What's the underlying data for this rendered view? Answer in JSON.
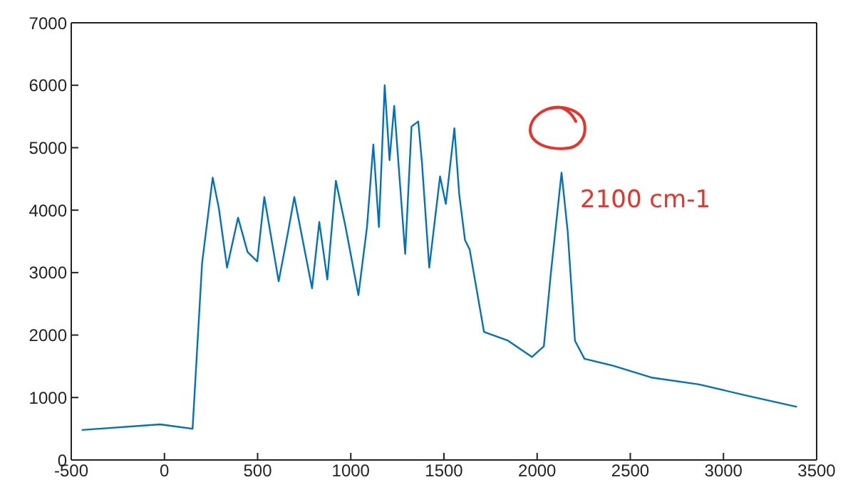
{
  "chart_data": {
    "type": "line",
    "x": [
      -444,
      -23,
      151,
      202,
      259,
      292,
      336,
      395,
      446,
      498,
      536,
      613,
      664,
      697,
      792,
      831,
      874,
      920,
      972,
      1041,
      1087,
      1121,
      1151,
      1182,
      1208,
      1233,
      1292,
      1326,
      1362,
      1382,
      1421,
      1479,
      1510,
      1556,
      1582,
      1613,
      1638,
      1715,
      1844,
      1972,
      2036,
      2074,
      2131,
      2164,
      2203,
      2254,
      2408,
      2613,
      2869,
      3125,
      3394
    ],
    "series": [
      {
        "color": "#0072bd",
        "values": [
          480,
          570,
          500,
          3150,
          4520,
          4030,
          3080,
          3880,
          3330,
          3180,
          4210,
          2860,
          3660,
          4210,
          2750,
          3810,
          2890,
          4470,
          3730,
          2640,
          3730,
          5050,
          3730,
          6000,
          4800,
          5670,
          3300,
          5340,
          5420,
          4760,
          3080,
          4540,
          4100,
          5310,
          4250,
          3520,
          3370,
          2050,
          1910,
          1650,
          1820,
          3000,
          4600,
          3660,
          1910,
          1620,
          1510,
          1320,
          1210,
          1030,
          850
        ]
      }
    ],
    "xlim": [
      -500,
      3500
    ],
    "xticks": [
      -500,
      0,
      500,
      1000,
      1500,
      2000,
      2500,
      3000,
      3500
    ],
    "ylim": [
      0,
      7000
    ],
    "yticks": [
      0,
      1000,
      2000,
      3000,
      4000,
      5000,
      6000,
      7000
    ],
    "grid": false,
    "legend": false,
    "marker": "none",
    "line_style": "solid",
    "annotations": [
      {
        "text": "2100 cm-1",
        "x": 2131,
        "y": 4600
      }
    ]
  }
}
